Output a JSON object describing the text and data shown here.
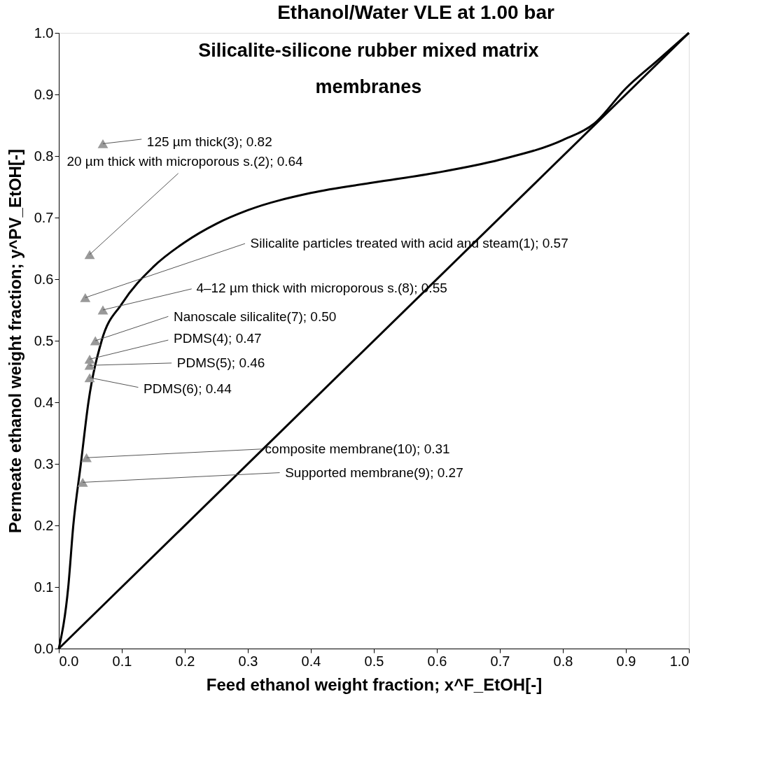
{
  "chart_data": {
    "type": "line",
    "title": "Ethanol/Water VLE at 1.00 bar",
    "subtitle": "Silicalite-silicone rubber mixed matrix membranes",
    "xlabel": "Feed ethanol weight fraction; x^F_EtOH[-]",
    "ylabel": "Permeate ethanol weight fraction; y^PV_EtOH[-]",
    "xlim": [
      0,
      1
    ],
    "ylim": [
      0,
      1
    ],
    "xticks": [
      {
        "value": 0,
        "label": "0.0"
      },
      0.1,
      0.2,
      0.3,
      0.4,
      0.5,
      0.6,
      0.7,
      0.8,
      0.9,
      {
        "value": 1,
        "label": "1.0"
      }
    ],
    "yticks": [
      {
        "value": 0,
        "label": "0.0"
      },
      0.1,
      0.2,
      0.3,
      0.4,
      0.5,
      0.6,
      0.7,
      0.8,
      0.9,
      {
        "value": 1,
        "label": "1.0"
      }
    ],
    "grid": false,
    "series": [
      {
        "color": "#000000",
        "x": [
          0,
          0.015,
          0.023,
          0.035,
          0.047,
          0.068,
          0.1,
          0.15,
          0.2,
          0.25,
          0.3,
          0.4,
          0.5,
          0.6,
          0.7,
          0.8,
          0.85,
          0.9,
          0.95,
          1.0
        ],
        "values": [
          0,
          0.1,
          0.2,
          0.3,
          0.4,
          0.5,
          0.56,
          0.62,
          0.66,
          0.69,
          0.712,
          0.74,
          0.757,
          0.773,
          0.794,
          0.826,
          0.853,
          0.91,
          0.955,
          1.0
        ]
      },
      {
        "color": "#000000",
        "x": [
          0,
          1
        ],
        "values": [
          0,
          1
        ]
      },
      {
        "type": "scatter",
        "marker": "triangle",
        "color": "#999999",
        "x": [
          0.07,
          0.049,
          0.042,
          0.07,
          0.058,
          0.049,
          0.049,
          0.049,
          0.044,
          0.038
        ],
        "values": [
          0.82,
          0.64,
          0.57,
          0.55,
          0.5,
          0.47,
          0.46,
          0.44,
          0.31,
          0.27
        ]
      }
    ],
    "annotations": [
      {
        "text": "125 µm thick(3); 0.82",
        "x": 0.07,
        "y": 0.82
      },
      {
        "text": "20 µm thick with microporous s.(2); 0.64",
        "x": 0.049,
        "y": 0.64
      },
      {
        "text": "Silicalite particles treated with acid and steam(1); 0.57",
        "x": 0.042,
        "y": 0.57
      },
      {
        "text": "4–12 µm thick with microporous s.(8); 0.55",
        "x": 0.07,
        "y": 0.55
      },
      {
        "text": "Nanoscale silicalite(7); 0.50",
        "x": 0.058,
        "y": 0.5
      },
      {
        "text": "PDMS(4); 0.47",
        "x": 0.049,
        "y": 0.47
      },
      {
        "text": "PDMS(5); 0.46",
        "x": 0.049,
        "y": 0.46
      },
      {
        "text": "PDMS(6); 0.44",
        "x": 0.049,
        "y": 0.44
      },
      {
        "text": "composite membrane(10); 0.31",
        "x": 0.044,
        "y": 0.31
      },
      {
        "text": "Supported membrane(9); 0.27",
        "x": 0.038,
        "y": 0.27
      }
    ]
  }
}
